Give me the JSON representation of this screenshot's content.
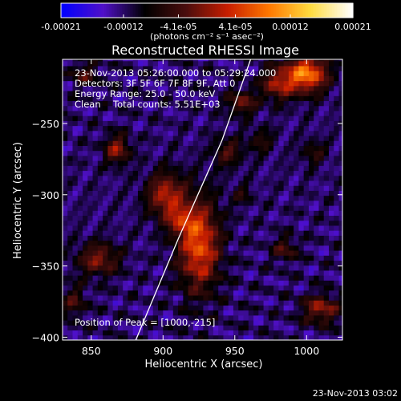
{
  "chart_data": {
    "type": "heatmap",
    "title": "Reconstructed RHESSI Image",
    "xlabel": "Heliocentric X (arcsec)",
    "ylabel": "Heliocentric Y (arcsec)",
    "x_range": [
      830,
      1025
    ],
    "y_range": [
      -402,
      -205
    ],
    "x_ticks": [
      850,
      900,
      950,
      1000
    ],
    "y_ticks": [
      -400,
      -350,
      -300,
      -250
    ],
    "colorbar": {
      "min": -0.00021,
      "max": 0.00021,
      "ticks": [
        -0.00021,
        -0.00012,
        -4.1e-05,
        4.1e-05,
        0.00012,
        0.00021
      ],
      "tick_labels": [
        "-0.00021",
        "-0.00012",
        "-4.1e-05",
        "4.1e-05",
        "0.00012",
        "0.00021"
      ],
      "unit_label": "(photons cm⁻² s⁻¹ asec⁻²)",
      "colormap": [
        "#0000ff",
        "#5010c8",
        "#000000",
        "#4a0d0d",
        "#c81e00",
        "#ff7800",
        "#ffdc40",
        "#ffffff"
      ]
    },
    "limb_line": [
      [
        881,
        -402
      ],
      [
        911,
        -330
      ],
      [
        941,
        -262
      ],
      [
        961,
        -205
      ]
    ],
    "peak_position": [
      1000,
      -215
    ],
    "emission_blobs": [
      {
        "x": 925,
        "y": -335,
        "sx": 10,
        "sy": 22,
        "amp": 0.00018
      },
      {
        "x": 902,
        "y": -300,
        "sx": 9,
        "sy": 11,
        "amp": 0.00014
      },
      {
        "x": 912,
        "y": -318,
        "sx": 7,
        "sy": 7,
        "amp": 9e-05
      },
      {
        "x": 1000,
        "y": -215,
        "sx": 10,
        "sy": 9,
        "amp": 0.00021
      },
      {
        "x": 980,
        "y": -222,
        "sx": 8,
        "sy": 8,
        "amp": 0.00012
      },
      {
        "x": 955,
        "y": -235,
        "sx": 7,
        "sy": 6,
        "amp": 0.0001
      },
      {
        "x": 945,
        "y": -270,
        "sx": 7,
        "sy": 7,
        "amp": 8e-05
      },
      {
        "x": 968,
        "y": -262,
        "sx": 6,
        "sy": 6,
        "amp": 6e-05
      },
      {
        "x": 868,
        "y": -268,
        "sx": 6,
        "sy": 7,
        "amp": 0.00012
      },
      {
        "x": 845,
        "y": -215,
        "sx": 7,
        "sy": 6,
        "amp": 7e-05
      },
      {
        "x": 855,
        "y": -345,
        "sx": 10,
        "sy": 8,
        "amp": 0.00011
      },
      {
        "x": 838,
        "y": -375,
        "sx": 6,
        "sy": 8,
        "amp": 7e-05
      },
      {
        "x": 1010,
        "y": -380,
        "sx": 9,
        "sy": 7,
        "amp": 0.00012
      },
      {
        "x": 985,
        "y": -338,
        "sx": 6,
        "sy": 6,
        "amp": 8e-05
      },
      {
        "x": 1005,
        "y": -270,
        "sx": 6,
        "sy": 6,
        "amp": 6e-05
      },
      {
        "x": 955,
        "y": -300,
        "sx": 5,
        "sy": 5,
        "amp": 5e-05
      }
    ],
    "annotations": {
      "time_range": "23-Nov-2013 05:26:00.000 to 05:29:24.000",
      "detectors": "Detectors: 3F 5F 6F 7F 8F 9F, Att 0",
      "energy_range": "Energy Range: 25.0 - 50.0 keV",
      "method": "Clean",
      "total_counts": "Total counts: 5.51E+03",
      "peak": "Position of Peak = [1000,-215]"
    }
  },
  "footer": {
    "timestamp": "23-Nov-2013 03:02"
  }
}
